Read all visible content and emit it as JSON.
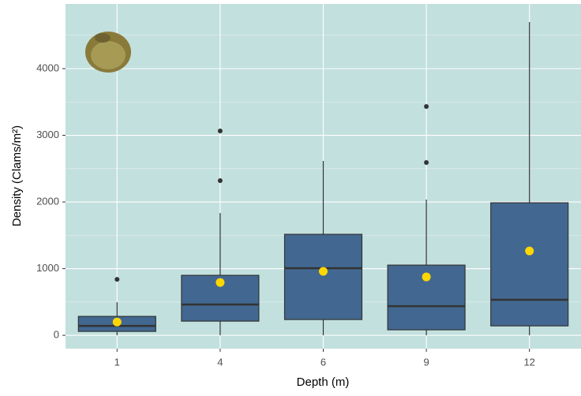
{
  "chart_data": {
    "type": "box",
    "x_label": "Depth (m)",
    "y_label": "Density (Clams/m²)",
    "categories": [
      "1",
      "4",
      "6",
      "9",
      "12"
    ],
    "whisker_low": [
      0,
      0,
      0,
      0,
      0
    ],
    "q1": [
      59,
      213,
      237,
      83,
      142
    ],
    "median": [
      142,
      462,
      1006,
      438,
      533
    ],
    "q3": [
      284,
      900,
      1515,
      1053,
      1988
    ],
    "whisker_high": [
      497,
      1834,
      2615,
      2036,
      4698
    ],
    "outliers": [
      [
        840
      ],
      [
        2320,
        3065
      ],
      [],
      [
        2592,
        3432
      ],
      []
    ],
    "means": [
      200,
      793,
      959,
      876,
      1266
    ],
    "box_color": "#426891",
    "mean_color": "#ffd700",
    "outlier_color": "#333333",
    "panel_color": "#c2e0de",
    "ylim": [
      -200,
      4970
    ],
    "yticks": [
      0,
      1000,
      2000,
      3000,
      4000
    ],
    "y_minor_ticks": [
      500,
      1500,
      2500,
      3500,
      4500
    ],
    "grid": true
  }
}
